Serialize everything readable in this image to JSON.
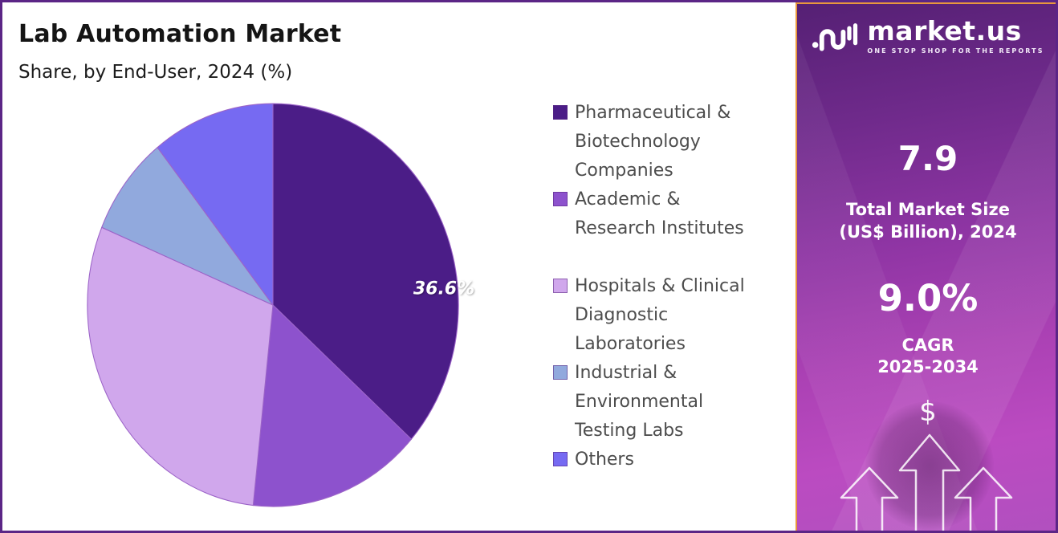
{
  "header": {
    "title": "Lab Automation Market",
    "subtitle": "Share, by End-User, 2024 (%)"
  },
  "chart_data": {
    "type": "pie",
    "title": "Lab Automation Market",
    "subtitle": "Share, by End-User, 2024 (%)",
    "categories": [
      "Pharmaceutical & Biotechnology Companies",
      "Academic & Research Institutes",
      "Hospitals & Clinical Diagnostic Laboratories",
      "Industrial & Environmental Testing Labs",
      "Others"
    ],
    "values": [
      36.6,
      15.1,
      29.6,
      8.0,
      10.7
    ],
    "colors": [
      "#4b1d87",
      "#8d52cd",
      "#d0a7ec",
      "#91a9dd",
      "#766af2"
    ],
    "data_label": "36.6%",
    "data_label_slice": "Pharmaceutical & Biotechnology Companies",
    "start_angle_deg": 0,
    "direction": "clockwise",
    "legend_position": "right"
  },
  "legend": {
    "items": [
      {
        "label": "Pharmaceutical &\nBiotechnology\nCompanies",
        "color": "#4b1d87"
      },
      {
        "label": "Academic &\nResearch Institutes",
        "color": "#8d52cd"
      },
      {
        "label": "Hospitals & Clinical\nDiagnostic\nLaboratories",
        "color": "#d0a7ec"
      },
      {
        "label": "Industrial &\nEnvironmental\nTesting Labs",
        "color": "#91a9dd"
      },
      {
        "label": "Others",
        "color": "#766af2"
      }
    ]
  },
  "sidebar": {
    "logo": {
      "brand": "market.us",
      "tagline": "ONE STOP SHOP FOR THE REPORTS"
    },
    "market_size": {
      "value": "7.9",
      "label_line1": "Total Market Size",
      "label_line2": "(US$ Billion), 2024"
    },
    "cagr": {
      "value": "9.0%",
      "label_line1": "CAGR",
      "label_line2": "2025-2034"
    },
    "dollar_symbol": "$"
  },
  "colors": {
    "frame_border": "#5b2586",
    "sidebar_border": "#e8973c",
    "sidebar_gradient_top": "#552074",
    "sidebar_gradient_bottom": "#b150bf"
  }
}
